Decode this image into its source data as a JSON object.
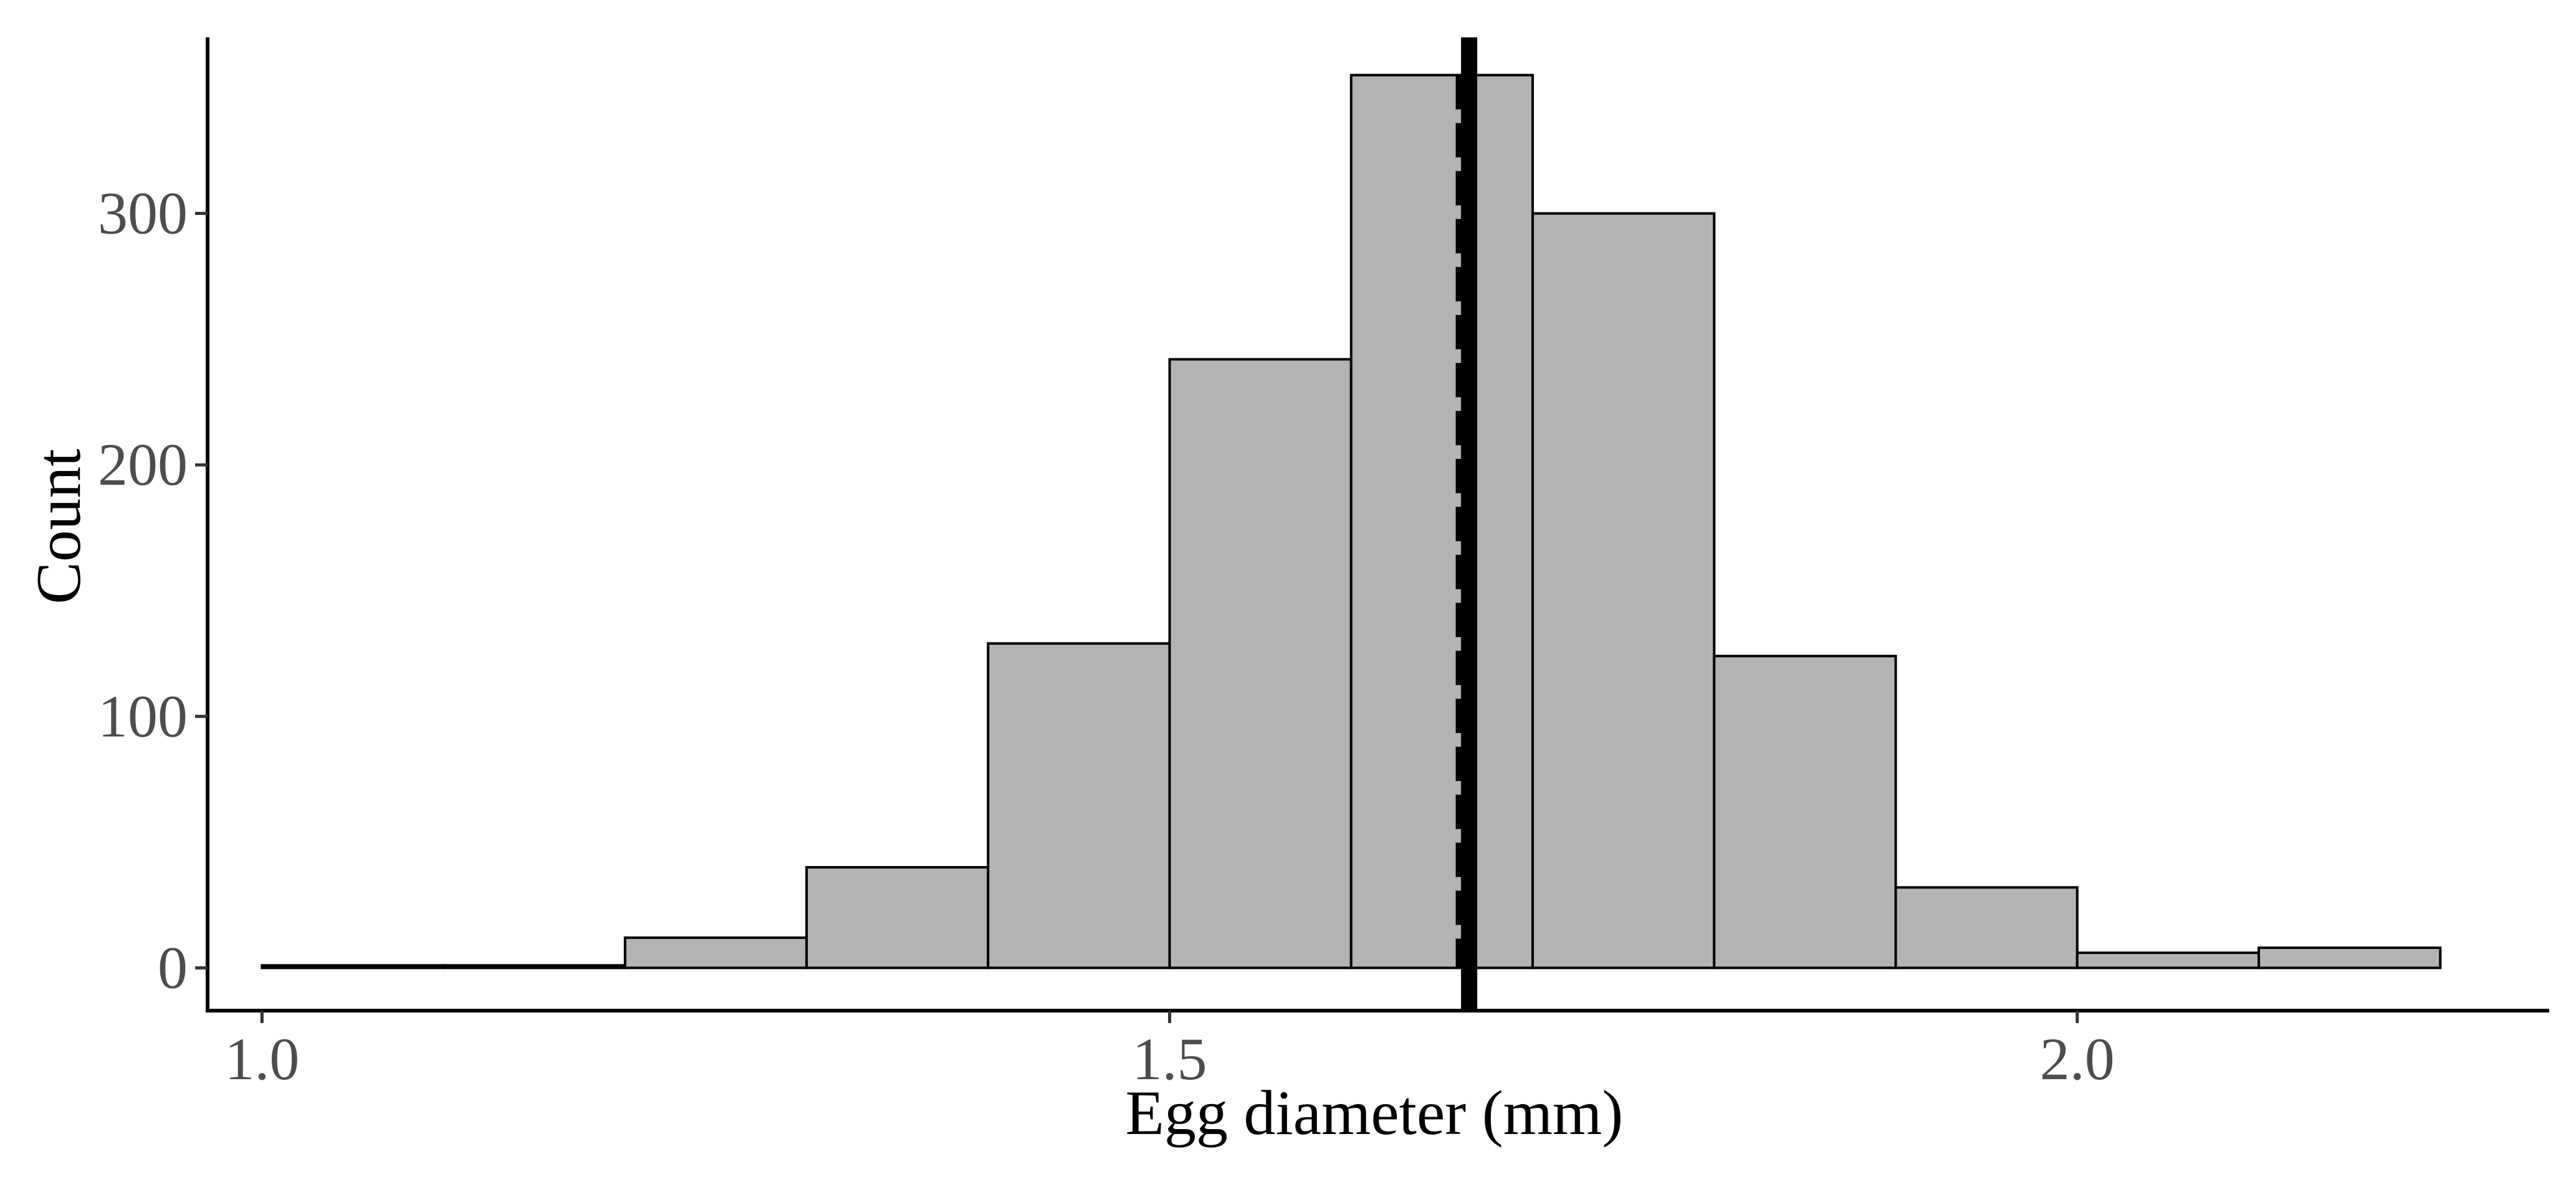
{
  "chart_data": {
    "type": "bar",
    "subtype": "histogram",
    "xlabel": "Egg diameter (mm)",
    "ylabel": "Count",
    "xlim": [
      0.97,
      2.26
    ],
    "ylim": [
      -17,
      370
    ],
    "x_ticks": [
      {
        "value": 1.0,
        "label": "1.0"
      },
      {
        "value": 1.5,
        "label": "1.5"
      },
      {
        "value": 2.0,
        "label": "2.0"
      }
    ],
    "y_ticks": [
      {
        "value": 0,
        "label": "0"
      },
      {
        "value": 100,
        "label": "100"
      },
      {
        "value": 200,
        "label": "200"
      },
      {
        "value": 300,
        "label": "300"
      }
    ],
    "bins": [
      {
        "x0": 1.0,
        "x1": 1.1,
        "count": 1
      },
      {
        "x0": 1.1,
        "x1": 1.2,
        "count": 1
      },
      {
        "x0": 1.2,
        "x1": 1.3,
        "count": 12
      },
      {
        "x0": 1.3,
        "x1": 1.4,
        "count": 40
      },
      {
        "x0": 1.4,
        "x1": 1.5,
        "count": 129
      },
      {
        "x0": 1.5,
        "x1": 1.6,
        "count": 242
      },
      {
        "x0": 1.6,
        "x1": 1.7,
        "count": 355
      },
      {
        "x0": 1.7,
        "x1": 1.8,
        "count": 300
      },
      {
        "x0": 1.8,
        "x1": 1.9,
        "count": 124
      },
      {
        "x0": 1.9,
        "x1": 2.0,
        "count": 32
      },
      {
        "x0": 2.0,
        "x1": 2.1,
        "count": 6
      },
      {
        "x0": 2.1,
        "x1": 2.2,
        "count": 8
      }
    ],
    "reference_lines": [
      {
        "x": 1.665,
        "style": "solid"
      },
      {
        "x": 1.66,
        "style": "dashed"
      }
    ],
    "bar_fill": "#b3b3b3",
    "bar_stroke": "#000000",
    "grid": false,
    "legend": "none"
  }
}
